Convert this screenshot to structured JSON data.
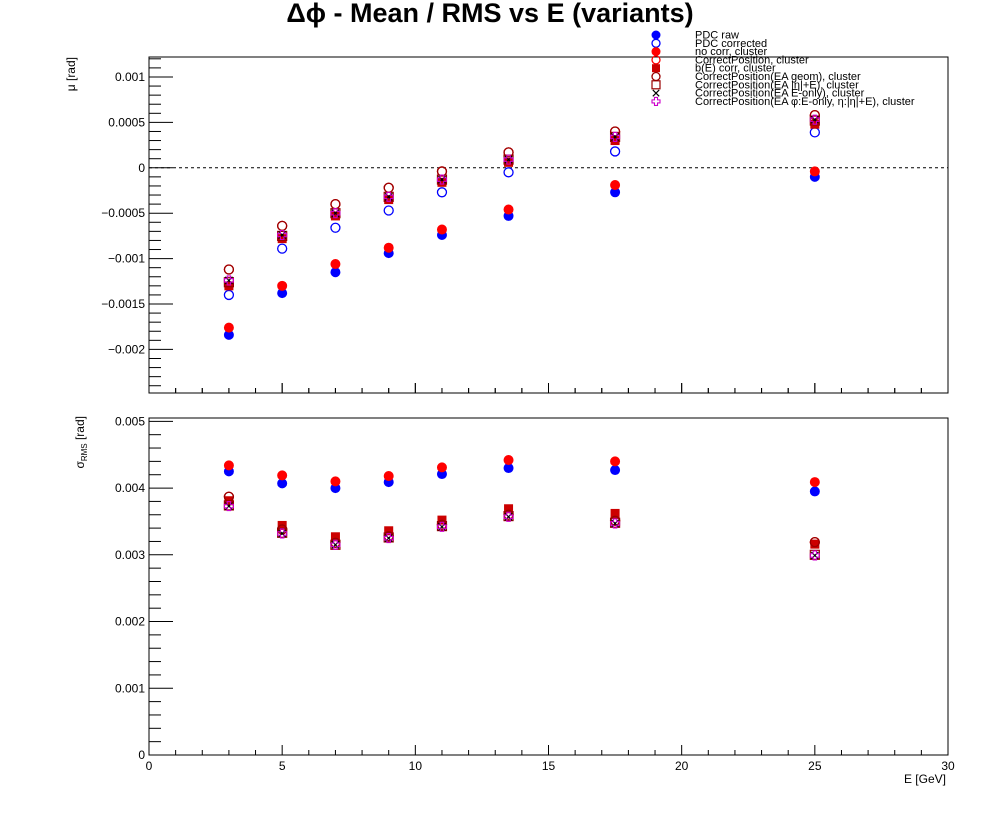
{
  "title": "Δϕ  -  Mean / RMS vs E  (variants)",
  "chart_data": [
    {
      "type": "scatter",
      "panel": "top",
      "ylabel": "μ  [rad]",
      "xlim": [
        0,
        30
      ],
      "ylim": [
        -0.00248,
        0.00122
      ],
      "yticks": [
        -0.002,
        -0.0015,
        -0.001,
        -0.0005,
        0,
        0.0005,
        0.001
      ],
      "ytick_labels": [
        "−0.002",
        "−0.0015",
        "−0.001",
        "−0.0005",
        "0",
        "0.0005",
        "0.001"
      ],
      "reference_line_y": 0,
      "x": [
        3,
        5,
        7,
        9,
        11,
        13.5,
        17.5,
        25
      ],
      "series": [
        {
          "name": "PDC raw",
          "marker": "filled-circle",
          "color": "#0000ff",
          "values": [
            -0.00184,
            -0.00138,
            -0.00115,
            -0.00094,
            -0.00074,
            -0.00053,
            -0.00027,
            -0.0001
          ]
        },
        {
          "name": "PDC corrected",
          "marker": "open-circle",
          "color": "#0000ff",
          "values": [
            -0.0014,
            -0.00089,
            -0.00066,
            -0.00047,
            -0.00027,
            -5e-05,
            0.00018,
            0.00039
          ]
        },
        {
          "name": "no corr, cluster",
          "marker": "filled-circle",
          "color": "#ff0000",
          "values": [
            -0.00176,
            -0.0013,
            -0.00106,
            -0.00088,
            -0.00068,
            -0.00046,
            -0.00019,
            -4e-05
          ]
        },
        {
          "name": "CorrectPosition, cluster",
          "marker": "open-circle",
          "color": "#ff0000",
          "values": [
            -0.00112,
            -0.00064,
            -0.0004,
            -0.00022,
            -4e-05,
            0.00017,
            0.0004,
            0.00058
          ]
        },
        {
          "name": "b(E) corr, cluster",
          "marker": "filled-square",
          "color": "#cc0000",
          "values": [
            -0.0013,
            -0.00078,
            -0.00053,
            -0.00035,
            -0.00016,
            6e-05,
            0.0003,
            0.00048
          ]
        },
        {
          "name": "CorrectPosition(EA geom), cluster",
          "marker": "open-circle",
          "color": "#990000",
          "values": [
            -0.00112,
            -0.00064,
            -0.0004,
            -0.00022,
            -4e-05,
            0.00017,
            0.0004,
            0.00058
          ]
        },
        {
          "name": "CorrectPosition(EA |η|+E), cluster",
          "marker": "open-square",
          "color": "#990000",
          "values": [
            -0.00126,
            -0.00075,
            -0.0005,
            -0.00032,
            -0.00013,
            9e-05,
            0.00034,
            0.00052
          ]
        },
        {
          "name": "CorrectPosition(EA E-only), cluster",
          "marker": "cross-x",
          "color": "#000000",
          "values": [
            -0.00124,
            -0.00074,
            -0.0005,
            -0.00032,
            -0.00013,
            9e-05,
            0.00034,
            0.00053
          ]
        },
        {
          "name": "CorrectPosition(EA φ:E-only, η:|η|+E), cluster",
          "marker": "open-plus",
          "color": "#cc00cc",
          "values": [
            -0.00124,
            -0.00074,
            -0.0005,
            -0.00032,
            -0.00013,
            9e-05,
            0.00034,
            0.00053
          ]
        }
      ]
    },
    {
      "type": "scatter",
      "panel": "bottom",
      "ylabel": "σ",
      "ylabel_subscript": "RMS",
      "ylabel_unit": "  [rad]",
      "xlabel": "E  [GeV]",
      "xlim": [
        0,
        30
      ],
      "ylim": [
        0,
        0.00505
      ],
      "xticks": [
        0,
        5,
        10,
        15,
        20,
        25,
        30
      ],
      "xtick_labels": [
        "0",
        "5",
        "10",
        "15",
        "20",
        "25",
        "30"
      ],
      "yticks": [
        0,
        0.001,
        0.002,
        0.003,
        0.004,
        0.005
      ],
      "ytick_labels": [
        "0",
        "0.001",
        "0.002",
        "0.003",
        "0.004",
        "0.005"
      ],
      "x": [
        3,
        5,
        7,
        9,
        11,
        13.5,
        17.5,
        25
      ],
      "series": [
        {
          "name": "PDC raw",
          "marker": "filled-circle",
          "color": "#0000ff",
          "values": [
            0.00425,
            0.00407,
            0.004,
            0.00409,
            0.00421,
            0.0043,
            0.00427,
            0.00395
          ]
        },
        {
          "name": "no corr, cluster",
          "marker": "filled-circle",
          "color": "#ff0000",
          "values": [
            0.00434,
            0.00419,
            0.0041,
            0.00418,
            0.00431,
            0.00442,
            0.0044,
            0.00409
          ]
        },
        {
          "name": "CorrectPosition, cluster",
          "marker": "open-circle",
          "color": "#ff0000",
          "values": [
            0.00387,
            0.00338,
            0.00318,
            0.00328,
            0.00345,
            0.0036,
            0.00351,
            0.00319
          ]
        },
        {
          "name": "b(E) corr, cluster",
          "marker": "filled-square",
          "color": "#cc0000",
          "values": [
            0.00381,
            0.00344,
            0.00327,
            0.00336,
            0.00352,
            0.00369,
            0.00362,
            0.00316
          ]
        },
        {
          "name": "CorrectPosition(EA geom), cluster",
          "marker": "open-circle",
          "color": "#990000",
          "values": [
            0.00387,
            0.00338,
            0.00318,
            0.00328,
            0.00345,
            0.0036,
            0.00351,
            0.00319
          ]
        },
        {
          "name": "CorrectPosition(EA |η|+E), cluster",
          "marker": "open-square",
          "color": "#990000",
          "values": [
            0.00374,
            0.00333,
            0.00315,
            0.00326,
            0.00343,
            0.00358,
            0.00348,
            0.003
          ]
        },
        {
          "name": "CorrectPosition(EA E-only), cluster",
          "marker": "cross-x",
          "color": "#000000",
          "values": [
            0.00373,
            0.00332,
            0.00315,
            0.00325,
            0.00342,
            0.00357,
            0.00347,
            0.00299
          ]
        },
        {
          "name": "CorrectPosition(EA φ:E-only, η:|η|+E), cluster",
          "marker": "open-plus",
          "color": "#cc00cc",
          "values": [
            0.00373,
            0.00332,
            0.00315,
            0.00325,
            0.00342,
            0.00357,
            0.00347,
            0.00299
          ]
        }
      ]
    }
  ],
  "legend": [
    {
      "label": "PDC raw",
      "marker": "filled-circle",
      "color": "#0000ff"
    },
    {
      "label": "PDC corrected",
      "marker": "open-circle",
      "color": "#0000ff"
    },
    {
      "label": "no corr, cluster",
      "marker": "filled-circle",
      "color": "#ff0000"
    },
    {
      "label": "CorrectPosition, cluster",
      "marker": "open-circle",
      "color": "#ff0000"
    },
    {
      "label": "b(E) corr, cluster",
      "marker": "filled-square",
      "color": "#cc0000"
    },
    {
      "label": "CorrectPosition(EA geom), cluster",
      "marker": "open-circle",
      "color": "#990000"
    },
    {
      "label": "CorrectPosition(EA |η|+E), cluster",
      "marker": "open-square",
      "color": "#990000"
    },
    {
      "label": "CorrectPosition(EA E-only), cluster",
      "marker": "cross-x",
      "color": "#000000"
    },
    {
      "label": "CorrectPosition(EA φ:E-only, η:|η|+E), cluster",
      "marker": "open-plus",
      "color": "#cc00cc"
    }
  ]
}
